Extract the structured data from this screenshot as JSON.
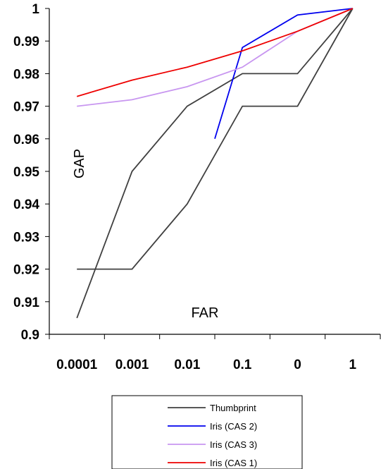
{
  "chart_data": {
    "type": "line",
    "title": "",
    "xlabel": "FAR",
    "ylabel": "GAP",
    "categories": [
      "0.0001",
      "0.001",
      "0.01",
      "0.1",
      "0",
      "1"
    ],
    "ylim": [
      0.9,
      1.0
    ],
    "yticks": [
      "0.9",
      "0.91",
      "0.92",
      "0.93",
      "0.94",
      "0.95",
      "0.96",
      "0.97",
      "0.98",
      "0.99",
      "1"
    ],
    "grid": false,
    "legend_position": "bottom",
    "series": [
      {
        "name": "Thumbprint",
        "color": "#404040",
        "points": [
          [
            0,
            0.92
          ],
          [
            1,
            0.92
          ],
          [
            2,
            0.94
          ],
          [
            3,
            0.97
          ],
          [
            4,
            0.97
          ],
          [
            5,
            1.0
          ]
        ]
      },
      {
        "name": "",
        "color": "#404040",
        "points": [
          [
            0,
            0.905
          ],
          [
            1,
            0.95
          ],
          [
            2,
            0.97
          ],
          [
            3,
            0.98
          ],
          [
            4,
            0.98
          ],
          [
            5,
            1.0
          ]
        ]
      },
      {
        "name": "Iris (CAS 2)",
        "color": "#0000ee",
        "points": [
          [
            2.5,
            0.96
          ],
          [
            3,
            0.988
          ],
          [
            4,
            0.998
          ],
          [
            5,
            1.0
          ]
        ]
      },
      {
        "name": "Iris (CAS 3)",
        "color": "#c896f0",
        "points": [
          [
            0,
            0.97
          ],
          [
            1,
            0.972
          ],
          [
            2,
            0.976
          ],
          [
            3,
            0.982
          ],
          [
            4,
            0.993
          ],
          [
            5,
            1.0
          ]
        ]
      },
      {
        "name": "Iris (CAS 1)",
        "color": "#ee0000",
        "points": [
          [
            0,
            0.973
          ],
          [
            1,
            0.978
          ],
          [
            2,
            0.982
          ],
          [
            3,
            0.987
          ],
          [
            4,
            0.993
          ],
          [
            5,
            1.0
          ]
        ]
      }
    ]
  }
}
